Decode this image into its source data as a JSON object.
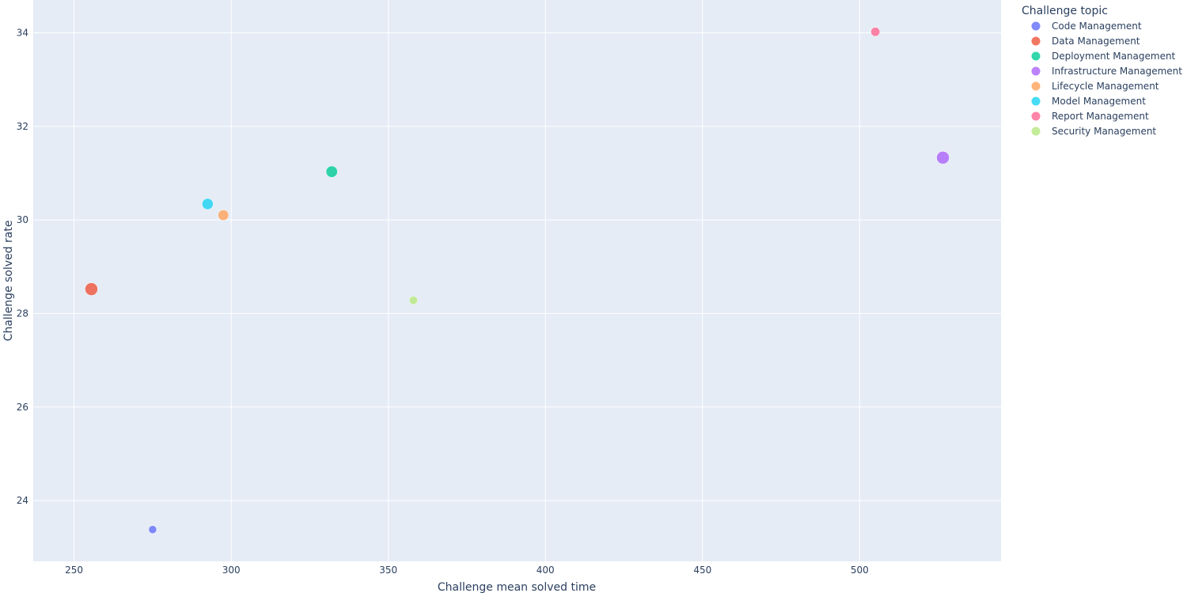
{
  "chart_data": {
    "type": "scatter",
    "xlabel": "Challenge mean solved time",
    "ylabel": "Challenge solved rate",
    "xlim": [
      237,
      545
    ],
    "ylim": [
      22.7,
      34.7
    ],
    "x_ticks": [
      250,
      300,
      350,
      400,
      450,
      500
    ],
    "y_ticks": [
      24,
      26,
      28,
      30,
      32,
      34
    ],
    "grid": true,
    "legend": {
      "title": "Challenge topic",
      "placement": "top-right"
    },
    "series": [
      {
        "name": "Code Management",
        "color": "#636efa",
        "x": 275.0,
        "y": 23.38,
        "size": 1.0
      },
      {
        "name": "Data Management",
        "color": "#EF553B",
        "x": 255.5,
        "y": 28.52,
        "size": 2.6
      },
      {
        "name": "Deployment Management",
        "color": "#00cc96",
        "x": 332.0,
        "y": 31.03,
        "size": 2.1
      },
      {
        "name": "Infrastructure Management",
        "color": "#ab63fa",
        "x": 526.5,
        "y": 31.33,
        "size": 2.6
      },
      {
        "name": "Lifecycle Management",
        "color": "#FFA15A",
        "x": 297.5,
        "y": 30.1,
        "size": 1.8
      },
      {
        "name": "Model Management",
        "color": "#19d3f3",
        "x": 292.5,
        "y": 30.34,
        "size": 2.0
      },
      {
        "name": "Report Management",
        "color": "#FF6692",
        "x": 505.0,
        "y": 34.02,
        "size": 1.3
      },
      {
        "name": "Security Management",
        "color": "#B6E880",
        "x": 358.0,
        "y": 28.28,
        "size": 1.1
      }
    ]
  }
}
